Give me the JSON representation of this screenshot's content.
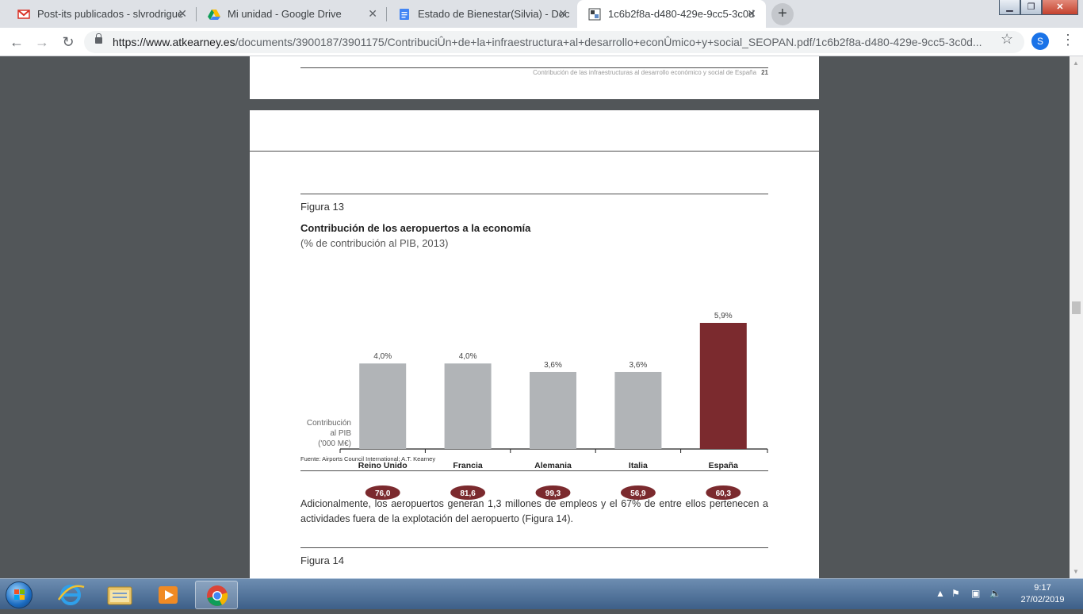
{
  "browser": {
    "tabs": [
      {
        "title": "Post-its publicados - slvrodrigue",
        "icon": "gmail-icon",
        "active": false
      },
      {
        "title": "Mi unidad - Google Drive",
        "icon": "google-drive-icon",
        "active": false
      },
      {
        "title": "Estado de Bienestar(Silvia) - Doc",
        "icon": "google-docs-icon",
        "active": false
      },
      {
        "title": "1c6b2f8a-d480-429e-9cc5-3c0d",
        "icon": "pdf-file-icon",
        "active": true
      }
    ],
    "new_tab_label": "+",
    "url_host": "https://www.atkearney.es",
    "url_path": "/documents/3900187/3901175/ContribuciÛn+de+la+infraestructura+al+desarrollo+econÛmico+y+social_SEOPAN.pdf/1c6b2f8a-d480-429e-9cc5-3c0d...",
    "profile_initial": "S"
  },
  "document": {
    "running_head": "Contribución de las infraestructuras al desarrollo económico y social de España",
    "page_number": "21",
    "figure13": {
      "label": "Figura 13",
      "title": "Contribución de los aeropuertos a la economía",
      "subtitle": "(% de contribución al PIB, 2013)",
      "pib_label_line1": "Contribución",
      "pib_label_line2": "al PIB",
      "pib_label_line3": "('000 M€)",
      "source": "Fuente: Airports Council International; A.T. Kearney"
    },
    "paragraph": "Adicionalmente, los aeropuertos generan 1,3 millones de empleos y el 67% de entre ellos pertenecen a actividades fuera de la explotación del aeropuerto (Figura 14).",
    "figure14_label": "Figura 14"
  },
  "chart_data": {
    "type": "bar",
    "title": "Contribución de los aeropuertos a la economía",
    "subtitle": "(% de contribución al PIB, 2013)",
    "categories": [
      "Reino Unido",
      "Francia",
      "Alemania",
      "Italia",
      "España"
    ],
    "values": [
      4.0,
      4.0,
      3.6,
      3.6,
      5.9
    ],
    "value_labels": [
      "4,0%",
      "4,0%",
      "3,6%",
      "3,6%",
      "5,9%"
    ],
    "pib_values": [
      "76,0",
      "81,6",
      "99,3",
      "56,9",
      "60,3"
    ],
    "ylim": [
      0,
      6.5
    ],
    "grid": false,
    "colors": {
      "default": "#b1b4b7",
      "highlight": "#7b2a2e",
      "badge": "#7b2a2e"
    },
    "highlight_index": 4
  },
  "taskbar": {
    "time": "9:17",
    "date": "27/02/2019",
    "pinned": [
      "internet-explorer-icon",
      "file-explorer-icon",
      "media-player-icon",
      "chrome-icon"
    ]
  }
}
